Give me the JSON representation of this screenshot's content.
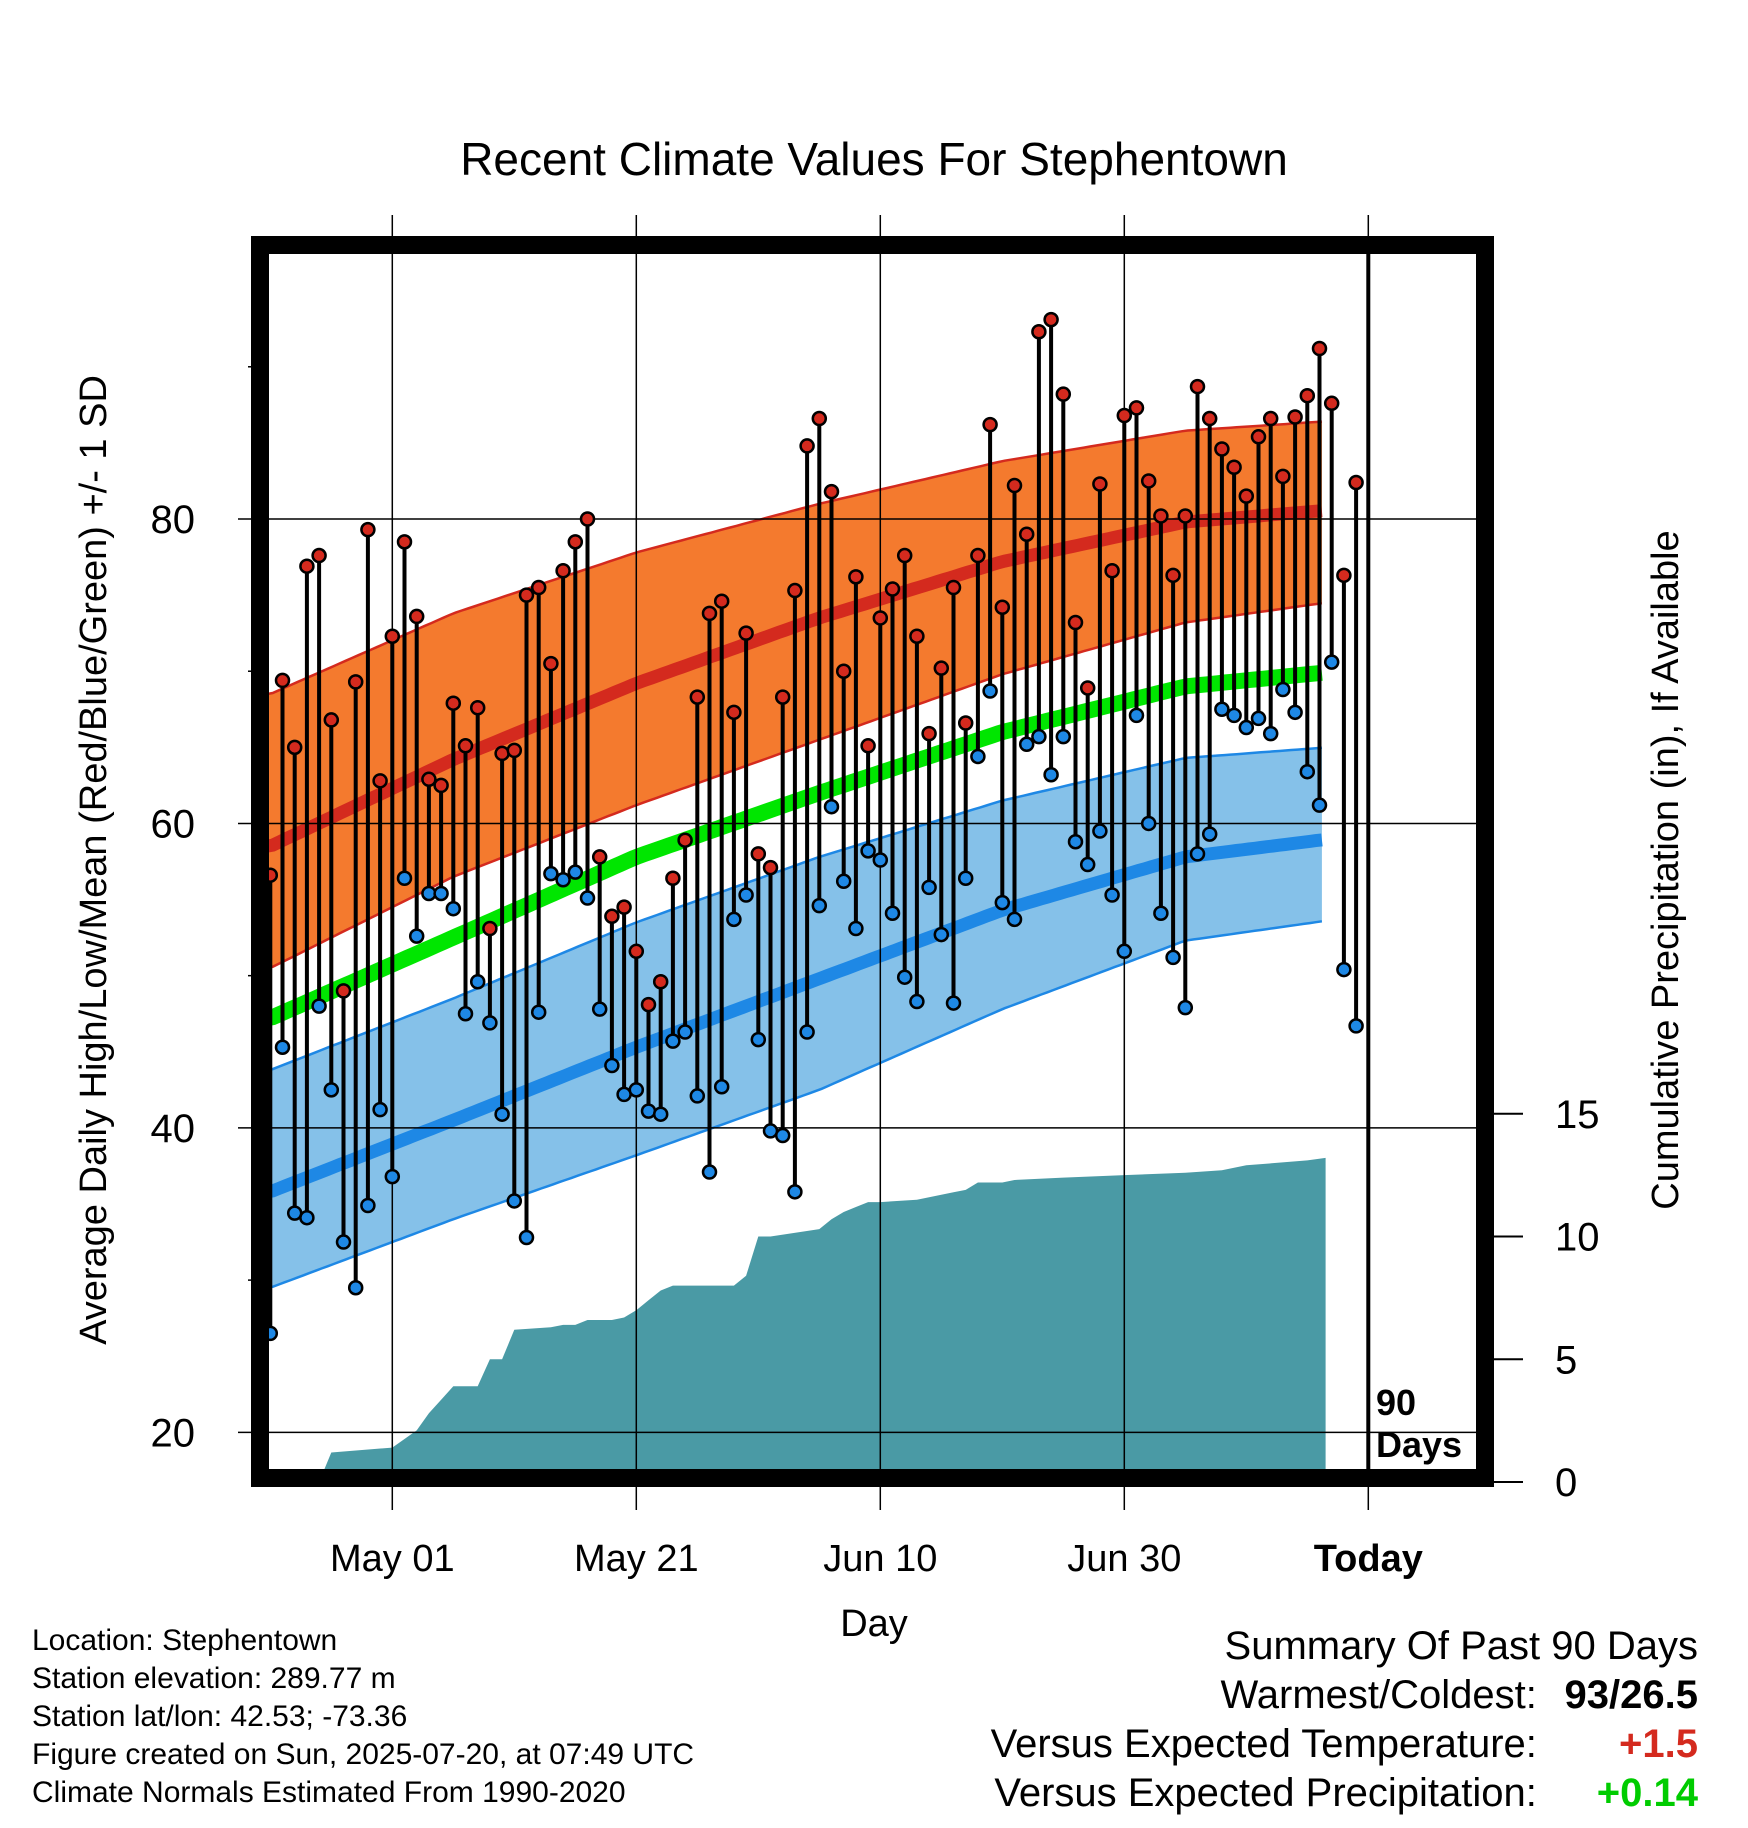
{
  "chart_data": {
    "type": "line",
    "title": "Recent Climate Values For Stephentown",
    "xlabel": "Day",
    "ylabel": "Average Daily High/Low/Mean (Red/Blue/Green) +/- 1 SD",
    "y2label": "Cumulative Precipitation (in), If Available",
    "x_ticks": [
      "May 01",
      "May 21",
      "Jun 10",
      "Jun 30",
      "Today"
    ],
    "y_ticks": [
      "20",
      "40",
      "60",
      "80"
    ],
    "y2_ticks": [
      "0",
      "5",
      "10",
      "15"
    ],
    "ylim": [
      17,
      98
    ],
    "y2lim": [
      0,
      47
    ],
    "grid": true,
    "today_marker_label": [
      "90",
      "Days"
    ],
    "colors": {
      "high_band": "#f47a2e",
      "high_band_edge": "#d42a1e",
      "high_mean": "#d42a1e",
      "low_band": "#85c1e9",
      "low_band_edge": "#1e88e5",
      "low_mean": "#1e88e5",
      "mean_line": "#00e600",
      "precip": "#4a9aa5",
      "high_dot": "#d42a1e",
      "low_dot": "#1e88e5",
      "stem": "#000000"
    },
    "normals": {
      "days": [
        0,
        15,
        30,
        45,
        60,
        75,
        90,
        100
      ],
      "high_mean": [
        58.5,
        64.2,
        69.2,
        73.5,
        77.2,
        79.8,
        80.8,
        80.3
      ],
      "high_upper": [
        68.5,
        73.8,
        77.8,
        81.0,
        83.8,
        85.8,
        86.6,
        86.0
      ],
      "high_lower": [
        50.5,
        56.5,
        61.2,
        65.5,
        69.8,
        73.2,
        74.9,
        74.8
      ],
      "low_mean": [
        35.8,
        40.5,
        45.3,
        49.8,
        54.3,
        57.8,
        59.3,
        59.0
      ],
      "low_upper": [
        43.8,
        48.5,
        53.5,
        57.8,
        61.5,
        64.3,
        65.2,
        64.8
      ],
      "low_lower": [
        29.5,
        34.0,
        38.2,
        42.5,
        47.8,
        52.3,
        54.0,
        53.8
      ],
      "mean_line": [
        47.2,
        52.5,
        57.8,
        62.0,
        66.0,
        69.0,
        70.2,
        69.8
      ]
    },
    "daily_high": [
      56.6,
      69.4,
      65.0,
      76.9,
      77.6,
      66.8,
      49.0,
      69.3,
      79.3,
      62.8,
      72.3,
      78.5,
      73.6,
      62.9,
      62.5,
      67.9,
      65.1,
      67.6,
      53.1,
      64.6,
      64.8,
      75.0,
      75.5,
      70.5,
      76.6,
      78.5,
      80.0,
      57.8,
      53.9,
      54.5,
      51.6,
      48.1,
      49.6,
      56.4,
      58.9,
      68.3,
      73.8,
      74.6,
      67.3,
      72.5,
      58.0,
      57.1,
      68.3,
      75.3,
      84.8,
      86.6,
      81.8,
      70.0,
      76.2,
      65.1,
      73.5,
      75.4,
      77.6,
      72.3,
      65.9,
      70.2,
      75.5,
      66.6,
      77.6,
      86.2,
      74.2,
      82.2,
      79.0,
      92.3,
      93.1,
      88.2,
      73.2,
      68.9,
      82.3,
      76.6,
      86.8,
      87.3,
      82.5,
      80.2,
      76.3,
      80.2,
      88.7,
      86.6,
      84.6,
      83.4,
      81.5,
      85.4,
      86.6,
      82.8,
      86.7,
      88.1,
      91.2,
      87.6,
      76.3,
      82.4
    ],
    "daily_low": [
      26.5,
      45.3,
      34.4,
      34.1,
      48.0,
      42.5,
      32.5,
      29.5,
      34.9,
      41.2,
      36.8,
      56.4,
      52.6,
      55.4,
      55.4,
      54.4,
      47.5,
      49.6,
      46.9,
      40.9,
      35.2,
      32.8,
      47.6,
      56.7,
      56.3,
      56.8,
      55.1,
      47.8,
      44.1,
      42.2,
      42.5,
      41.1,
      40.9,
      45.7,
      46.3,
      42.1,
      37.1,
      42.7,
      53.7,
      55.3,
      45.8,
      39.8,
      39.5,
      35.8,
      46.3,
      54.6,
      61.1,
      56.2,
      53.1,
      58.2,
      57.6,
      54.1,
      49.9,
      48.3,
      55.8,
      52.7,
      48.2,
      56.4,
      64.4,
      68.7,
      54.8,
      53.7,
      65.2,
      65.7,
      63.2,
      65.7,
      58.8,
      57.3,
      59.5,
      55.3,
      51.6,
      67.1,
      60.0,
      54.1,
      51.2,
      47.9,
      58.0,
      59.3,
      67.5,
      67.1,
      66.3,
      66.9,
      65.9,
      68.8,
      67.3,
      63.4,
      61.2,
      70.6,
      50.4,
      46.7
    ],
    "precip_cumulative": {
      "days": [
        0,
        4,
        5,
        10,
        12,
        13,
        15,
        17,
        18,
        19,
        20,
        23,
        24,
        25,
        26,
        28,
        29,
        30,
        31,
        32,
        33,
        34,
        35,
        38,
        39,
        40,
        41,
        45,
        46,
        47,
        48,
        49,
        50,
        53,
        54,
        56,
        57,
        58,
        60,
        61,
        65,
        70,
        75,
        78,
        80,
        85,
        90,
        100
      ],
      "values": [
        0,
        0,
        1.2,
        1.4,
        2.1,
        2.8,
        3.9,
        3.9,
        5.0,
        5.0,
        6.2,
        6.3,
        6.4,
        6.4,
        6.6,
        6.6,
        6.7,
        7.0,
        7.4,
        7.8,
        8.0,
        8.0,
        8.0,
        8.0,
        8.4,
        10.0,
        10.0,
        10.3,
        10.7,
        11.0,
        11.2,
        11.4,
        11.4,
        11.5,
        11.6,
        11.8,
        11.9,
        12.2,
        12.2,
        12.3,
        12.4,
        12.5,
        12.6,
        12.7,
        12.9,
        13.1,
        13.2,
        13.2
      ]
    }
  },
  "footer": {
    "location": "Location: Stephentown",
    "elevation": "Station elevation: 289.77 m",
    "latlon": "Station lat/lon: 42.53; -73.36",
    "created": "Figure created on Sun, 2025-07-20, at 07:49 UTC",
    "normals": "Climate Normals Estimated From 1990-2020"
  },
  "summary": {
    "heading": "Summary Of Past 90 Days",
    "warmest_label": "Warmest/Coldest:",
    "warmest_value": "93/26.5",
    "temp_label": "Versus Expected Temperature:",
    "temp_value": "+1.5",
    "temp_color": "#d42a1e",
    "precip_label": "Versus Expected Precipitation:",
    "precip_value": "+0.14",
    "precip_color": "#00cc00"
  }
}
